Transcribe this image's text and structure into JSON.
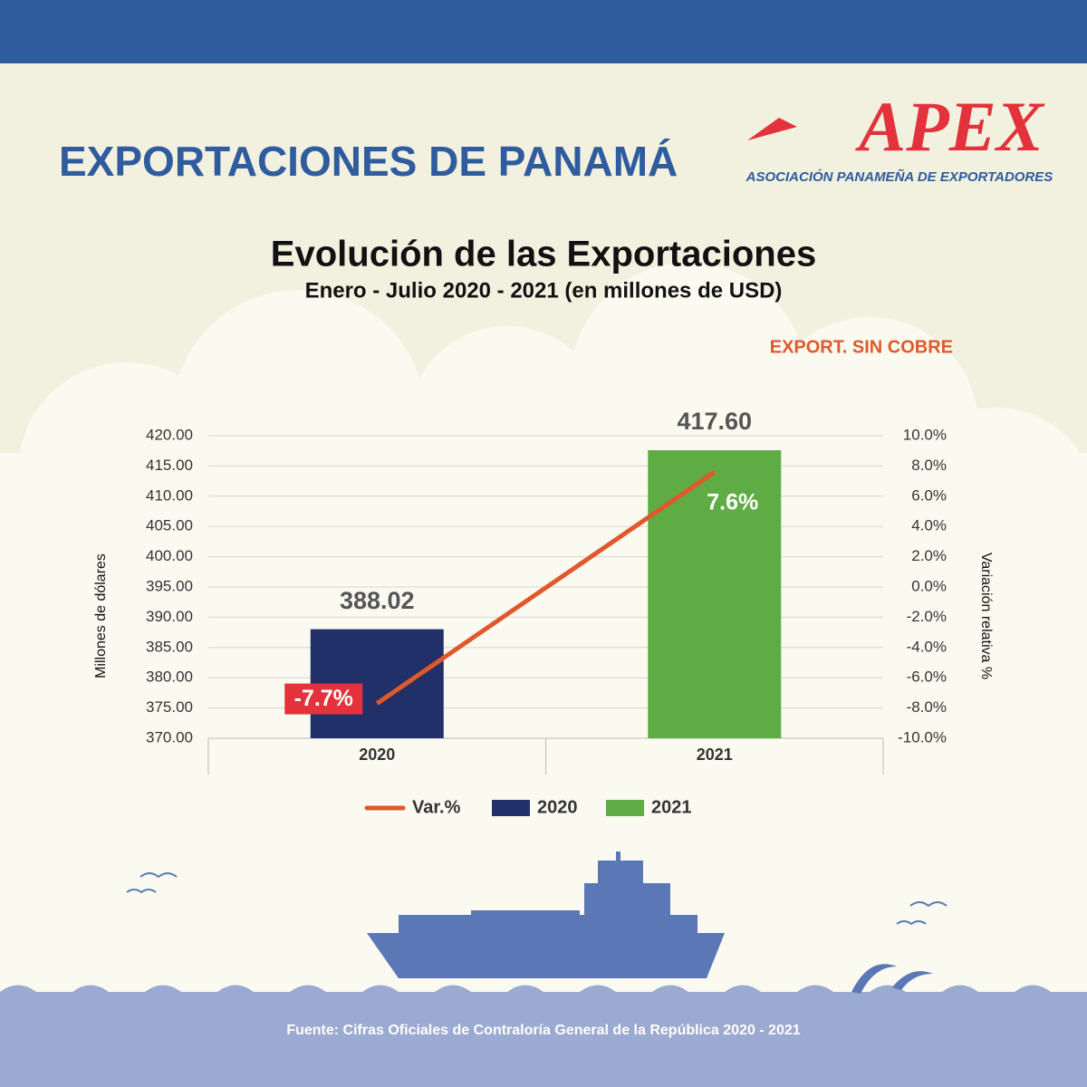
{
  "header": {
    "title": "EXPORTACIONES DE PANAMÁ",
    "logo": "APEX",
    "logo_subtitle": "ASOCIACIÓN PANAMEÑA DE EXPORTADORES"
  },
  "chart_data": {
    "type": "bar",
    "title": "Evolución de las Exportaciones",
    "subtitle": "Enero - Julio 2020 - 2021 (en millones de USD)",
    "annotation": "EXPORT. SIN COBRE",
    "ylabel": "Millones de dólares",
    "y2label": "Variación relativa %",
    "categories": [
      "2020",
      "2021"
    ],
    "series": [
      {
        "name": "Var.%",
        "type": "line",
        "axis": "y2",
        "color": "#e0582b",
        "values": [
          -7.7,
          7.6
        ],
        "value_labels": [
          "-7.7%",
          "7.6%"
        ]
      },
      {
        "name": "2020",
        "type": "bar",
        "color": "#22306a",
        "values": [
          388.02,
          null
        ],
        "value_labels": [
          "388.02",
          null
        ]
      },
      {
        "name": "2021",
        "type": "bar",
        "color": "#5fac45",
        "values": [
          null,
          417.6
        ],
        "value_labels": [
          null,
          "417.60"
        ]
      }
    ],
    "ylim": [
      370,
      420
    ],
    "yticks": [
      {
        "value": 370,
        "label": "370.00"
      },
      {
        "value": 375,
        "label": "375.00"
      },
      {
        "value": 380,
        "label": "380.00"
      },
      {
        "value": 385,
        "label": "385.00"
      },
      {
        "value": 390,
        "label": "390.00"
      },
      {
        "value": 395,
        "label": "395.00"
      },
      {
        "value": 400,
        "label": "400.00"
      },
      {
        "value": 405,
        "label": "405.00"
      },
      {
        "value": 410,
        "label": "410.00"
      },
      {
        "value": 415,
        "label": "415.00"
      },
      {
        "value": 420,
        "label": "420.00"
      }
    ],
    "y2lim": [
      -10,
      10
    ],
    "y2ticks": [
      {
        "value": -10,
        "label": "-10.0%"
      },
      {
        "value": -8,
        "label": "-8.0%"
      },
      {
        "value": -6,
        "label": "-6.0%"
      },
      {
        "value": -4,
        "label": "-4.0%"
      },
      {
        "value": -2,
        "label": "-2.0%"
      },
      {
        "value": 0,
        "label": "0.0%"
      },
      {
        "value": 2,
        "label": "2.0%"
      },
      {
        "value": 4,
        "label": "4.0%"
      },
      {
        "value": 6,
        "label": "6.0%"
      },
      {
        "value": 8,
        "label": "8.0%"
      },
      {
        "value": 10,
        "label": "10.0%"
      }
    ],
    "grid": true,
    "legend": "bottom"
  },
  "footer": {
    "source": "Fuente: Cifras Oficiales de Contraloría General de la República 2020 - 2021"
  }
}
